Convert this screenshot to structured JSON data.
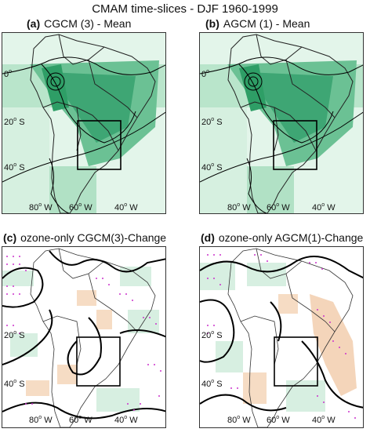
{
  "figure_title": "CMAM time-slices - DJF 1960-1999",
  "colors": {
    "green": "#2e9e66",
    "green_light": "#cfeedd",
    "orange": "#f2c9a5",
    "stipple": "#cc33cc",
    "contour": "#000000"
  },
  "panels": [
    {
      "letter": "(a)",
      "title": "CGCM (3) - Mean",
      "lat_ticks": [
        "0",
        "20",
        "40"
      ],
      "lat_ticks_suffix": [
        "",
        "S",
        "S"
      ],
      "lon_ticks": [
        "80",
        "60",
        "40"
      ],
      "lon_suffix": "W"
    },
    {
      "letter": "(b)",
      "title": "AGCM (1) - Mean",
      "lat_ticks": [
        "0",
        "20",
        "40"
      ],
      "lat_ticks_suffix": [
        "",
        "S",
        "S"
      ],
      "lon_ticks": [
        "80",
        "60",
        "40"
      ],
      "lon_suffix": "W"
    },
    {
      "letter": "(c)",
      "title": "ozone-only CGCM(3)-Change",
      "lat_ticks": [
        "20",
        "40"
      ],
      "lat_ticks_suffix": [
        "S",
        "S"
      ],
      "lon_ticks": [
        "80",
        "60",
        "40"
      ],
      "lon_suffix": "W"
    },
    {
      "letter": "(d)",
      "title": "ozone-only AGCM(1)-Change",
      "lat_ticks": [
        "20",
        "40"
      ],
      "lat_ticks_suffix": [
        "S",
        "S"
      ],
      "lon_ticks": [
        "80",
        "60",
        "40"
      ],
      "lon_suffix": "W"
    }
  ]
}
